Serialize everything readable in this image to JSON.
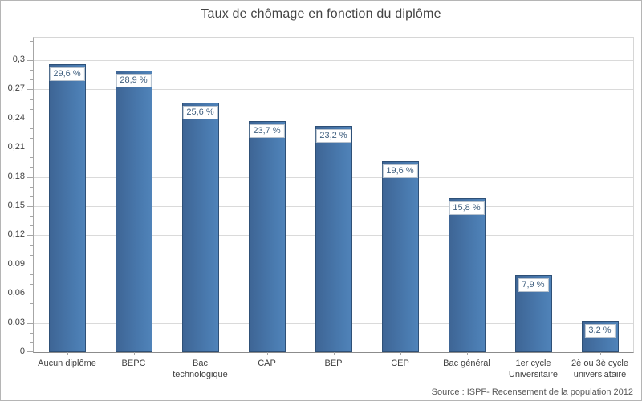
{
  "window": {
    "background": "#ffffff",
    "border_color": "#b5b5b5"
  },
  "chart_data": {
    "type": "bar",
    "title": "Taux de chômage en fonction du diplôme",
    "source_note": "Source : ISPF- Recensement de la population 2012",
    "categories": [
      "Aucun diplôme",
      "BEPC",
      "Bac\ntechnologique",
      "CAP",
      "BEP",
      "CEP",
      "Bac général",
      "1er cycle\nUniversitaire",
      "2è ou 3è cycle\nuniversiataire"
    ],
    "values": [
      0.296,
      0.289,
      0.256,
      0.237,
      0.232,
      0.196,
      0.158,
      0.079,
      0.032
    ],
    "value_labels": [
      "29,6 %",
      "28,9 %",
      "25,6 %",
      "23,7 %",
      "23,2 %",
      "19,6 %",
      "15,8 %",
      "7,9 %",
      "3,2 %"
    ],
    "xlabel": "",
    "ylabel": "",
    "ylim": [
      0,
      0.323
    ],
    "y_major_step": 0.03,
    "y_minor_step": 0.01,
    "y_ticks": [
      {
        "v": 0,
        "label": "0"
      },
      {
        "v": 0.03,
        "label": "0,03"
      },
      {
        "v": 0.06,
        "label": "0,06"
      },
      {
        "v": 0.09,
        "label": "0,09"
      },
      {
        "v": 0.12,
        "label": "0,12"
      },
      {
        "v": 0.15,
        "label": "0,15"
      },
      {
        "v": 0.18,
        "label": "0,18"
      },
      {
        "v": 0.21,
        "label": "0,21"
      },
      {
        "v": 0.24,
        "label": "0,24"
      },
      {
        "v": 0.27,
        "label": "0,27"
      },
      {
        "v": 0.3,
        "label": "0,3"
      }
    ],
    "grid": true,
    "legend_position": "none",
    "colors": {
      "bar_fill_dark": "#3e6595",
      "bar_fill_light": "#5083b9",
      "bar_border": "#2e5077",
      "gridline": "#dadada",
      "axis_line": "#a6a6a6",
      "x_axis_line": "#8c8c8c",
      "label_box_border": "#b7c2ce",
      "label_text": "#3f5f7f",
      "axis_text": "#404040",
      "title_text": "#444444",
      "source_text": "#595959"
    }
  }
}
